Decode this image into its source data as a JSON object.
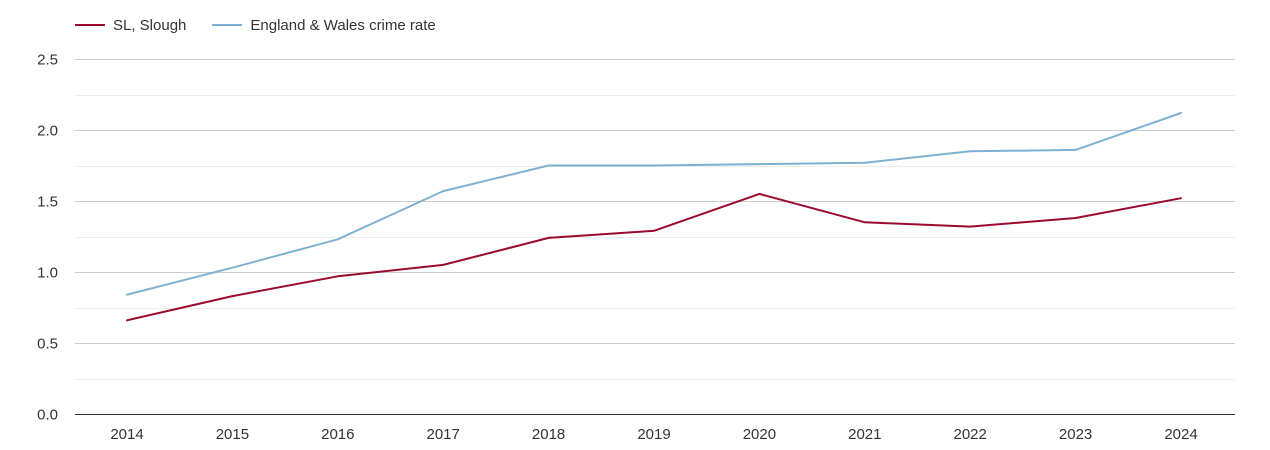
{
  "chart_data": {
    "type": "line",
    "title": "",
    "xlabel": "",
    "ylabel": "",
    "categories": [
      "2014",
      "2015",
      "2016",
      "2017",
      "2018",
      "2019",
      "2020",
      "2021",
      "2022",
      "2023",
      "2024"
    ],
    "ylim": [
      0,
      2.5
    ],
    "yticks": [
      "0.0",
      "0.5",
      "1.0",
      "1.5",
      "2.0",
      "2.5"
    ],
    "grid": true,
    "legend_position": "top-left",
    "series": [
      {
        "name": "SL, Slough",
        "color": "#9b0a2e",
        "values": [
          0.66,
          0.83,
          0.97,
          1.05,
          1.24,
          1.29,
          1.55,
          1.35,
          1.32,
          1.38,
          1.52
        ]
      },
      {
        "name": "England & Wales crime rate",
        "color": "#7fb0d2",
        "values": [
          0.84,
          1.03,
          1.23,
          1.57,
          1.75,
          1.75,
          1.76,
          1.77,
          1.85,
          1.86,
          2.12
        ]
      }
    ]
  }
}
